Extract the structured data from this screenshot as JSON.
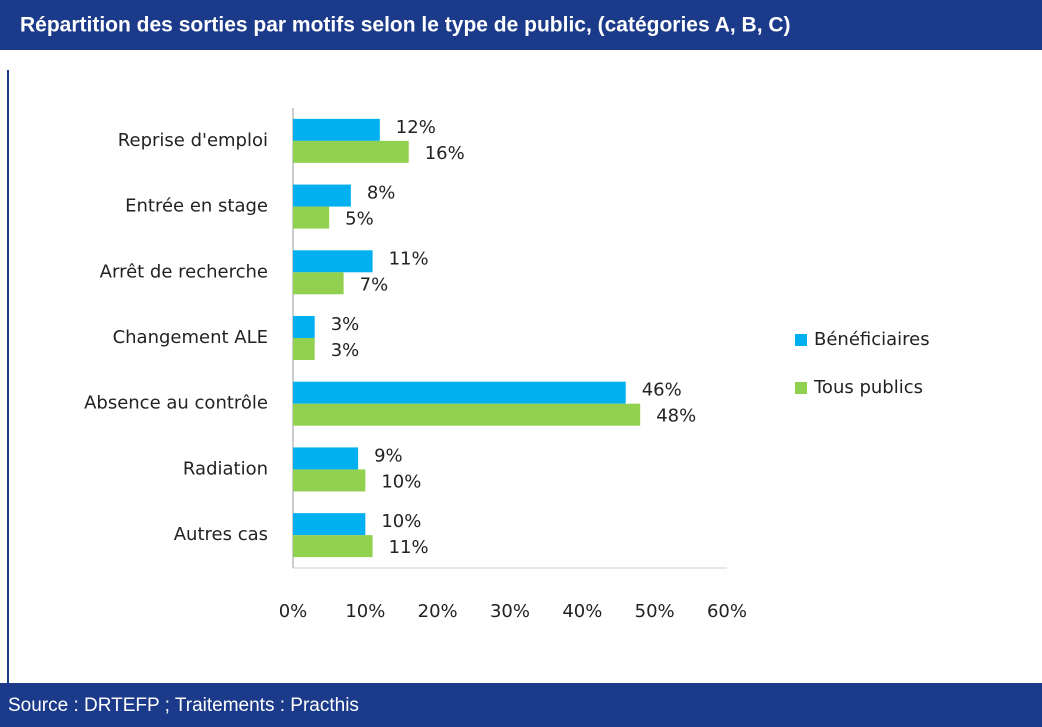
{
  "chart_data": {
    "type": "hbar",
    "title": "Répartition des sorties par motifs selon le type de public, (catégories A, B, C)",
    "source": "Source : DRTEFP ; Traitements : Practhis",
    "categories": [
      "Reprise d'emploi",
      "Entrée en stage",
      "Arrêt de recherche",
      "Changement ALE",
      "Absence au contrôle",
      "Radiation",
      "Autres cas"
    ],
    "series": [
      {
        "name": "Bénéficiaires",
        "color": "#00b0f0",
        "values": [
          12,
          8,
          11,
          3,
          46,
          9,
          10
        ],
        "value_labels": [
          "12%",
          "8%",
          "11%",
          "3%",
          "46%",
          "9%",
          "10%"
        ]
      },
      {
        "name": "Tous publics",
        "color": "#92d050",
        "values": [
          16,
          5,
          7,
          3,
          48,
          10,
          11
        ],
        "value_labels": [
          "16%",
          "5%",
          "7%",
          "3%",
          "48%",
          "10%",
          "11%"
        ]
      }
    ],
    "xlim": [
      0,
      60
    ],
    "xticks": [
      {
        "value": 0,
        "label": "0%"
      },
      {
        "value": 10,
        "label": "10%"
      },
      {
        "value": 20,
        "label": "20%"
      },
      {
        "value": 30,
        "label": "30%"
      },
      {
        "value": 40,
        "label": "40%"
      },
      {
        "value": 50,
        "label": "50%"
      },
      {
        "value": 60,
        "label": "60%"
      }
    ],
    "legend": "right"
  }
}
